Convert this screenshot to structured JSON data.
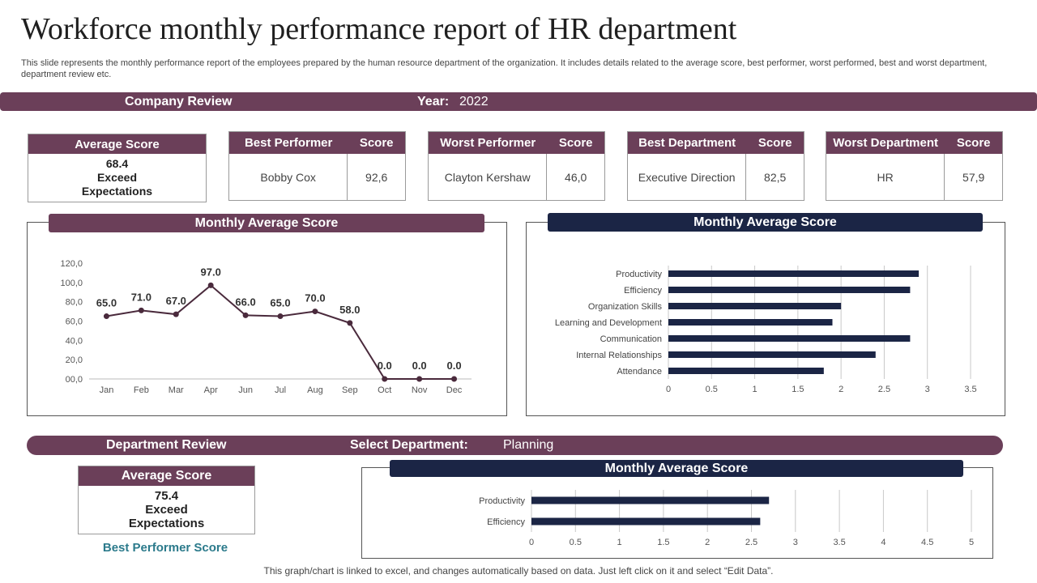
{
  "title": "Workforce monthly performance report of HR department",
  "subtitle": "This slide represents the monthly performance report of the employees prepared by the human resource department of the organization. It includes details related to the average score, best performer, worst performed, best and worst department, department review etc.",
  "company_review": {
    "label": "Company Review",
    "year_label": "Year:",
    "year_value": "2022"
  },
  "average_score": {
    "header": "Average Score",
    "value": "68.4",
    "line2": "Exceed",
    "line3": "Expectations"
  },
  "best_performer": {
    "col1": "Best Performer",
    "col2": "Score",
    "name": "Bobby Cox",
    "score": "92,6"
  },
  "worst_performer": {
    "col1": "Worst Performer",
    "col2": "Score",
    "name": "Clayton Kershaw",
    "score": "46,0"
  },
  "best_department": {
    "col1": "Best Department",
    "col2": "Score",
    "name": "Executive Direction",
    "score": "82,5"
  },
  "worst_department": {
    "col1": "Worst Department",
    "col2": "Score",
    "name": "HR",
    "score": "57,9"
  },
  "department_review": {
    "label": "Department Review",
    "select_label": "Select Department:",
    "select_value": "Planning",
    "avg_header": "Average Score",
    "avg_value": "75.4",
    "avg_line2": "Exceed",
    "avg_line3": "Expectations",
    "best_performer_score": "Best Performer Score"
  },
  "footer": "This graph/chart is linked to excel, and changes automatically based on data. Just left click on it and select “Edit Data”.",
  "colors": {
    "maroon": "#6b3f59",
    "navy": "#1b2545",
    "line": "#4a2a3c",
    "teal": "#2b7a8b"
  },
  "chart_data": [
    {
      "type": "line",
      "title": "Monthly Average Score",
      "categories": [
        "Jan",
        "Feb",
        "Mar",
        "Apr",
        "Jun",
        "Jul",
        "Aug",
        "Sep",
        "Oct",
        "Nov",
        "Dec"
      ],
      "values": [
        65.0,
        71.0,
        67.0,
        97.0,
        66.0,
        65.0,
        70.0,
        58.0,
        0.0,
        0.0,
        0.0
      ],
      "data_labels": [
        "65.0",
        "71.0",
        "67.0",
        "97.0",
        "66.0",
        "65.0",
        "70.0",
        "58.0",
        "0.0",
        "0.0",
        "0.0"
      ],
      "ylim": [
        0,
        120
      ],
      "yticks": [
        "00,0",
        "20,0",
        "40,0",
        "60,0",
        "80,0",
        "100,0",
        "120,0"
      ]
    },
    {
      "type": "bar",
      "orientation": "horizontal",
      "title": "Monthly Average Score",
      "categories": [
        "Productivity",
        "Efficiency",
        "Organization Skills",
        "Learning and Development",
        "Communication",
        "Internal Relationships",
        "Attendance"
      ],
      "values": [
        2.9,
        2.8,
        2.0,
        1.9,
        2.8,
        2.4,
        1.8
      ],
      "xlim": [
        0,
        3.5
      ],
      "xticks": [
        "0",
        "0.5",
        "1",
        "1.5",
        "2",
        "2.5",
        "3",
        "3.5"
      ]
    },
    {
      "type": "bar",
      "orientation": "horizontal",
      "title": "Monthly Average Score",
      "categories": [
        "Productivity",
        "Efficiency"
      ],
      "values": [
        2.7,
        2.6
      ],
      "xlim": [
        0,
        5
      ],
      "xticks": [
        "0",
        "0.5",
        "1",
        "1.5",
        "2",
        "2.5",
        "3",
        "3.5",
        "4",
        "4.5",
        "5"
      ]
    }
  ]
}
